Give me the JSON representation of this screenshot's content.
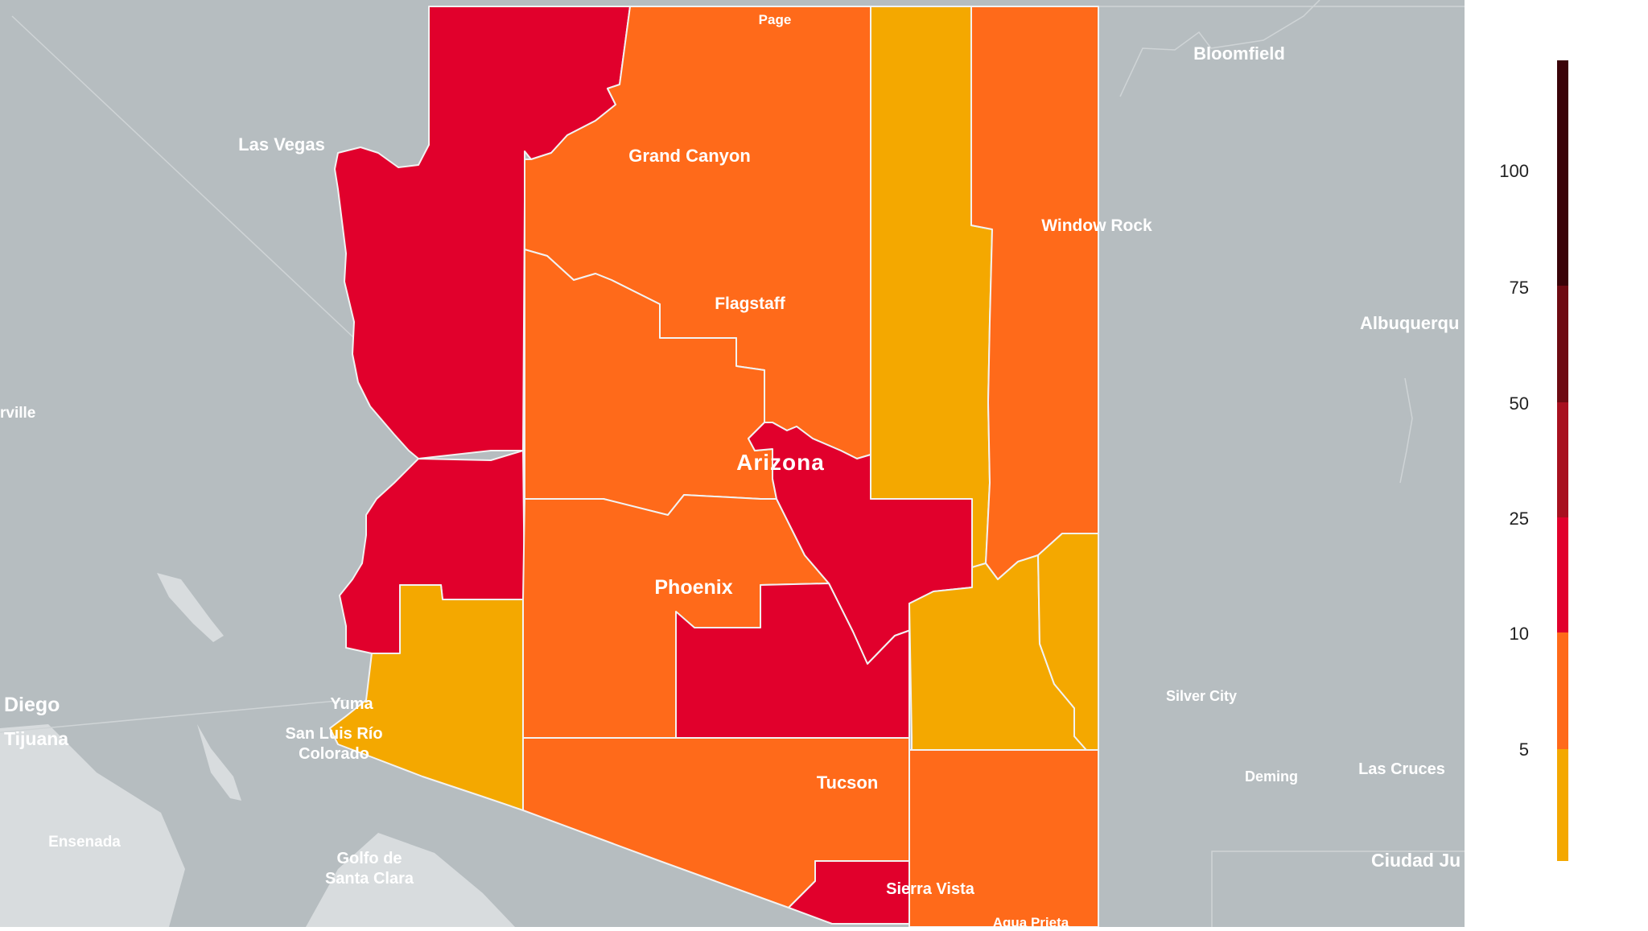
{
  "map": {
    "state_label": "Arizona",
    "background_color": "#b6bdc0",
    "water_color": "#d8dcde",
    "border_color": "#f2f2f2",
    "counties": [
      {
        "id": "mohave-north",
        "level": 4
      },
      {
        "id": "mohave-south",
        "level": 4
      },
      {
        "id": "coconino",
        "level": 3
      },
      {
        "id": "yavapai",
        "level": 3
      },
      {
        "id": "maricopa",
        "level": 3
      },
      {
        "id": "gila",
        "level": 4
      },
      {
        "id": "pinal",
        "level": 4
      },
      {
        "id": "navajo",
        "level": 2
      },
      {
        "id": "apache",
        "level": 3
      },
      {
        "id": "graham",
        "level": 2
      },
      {
        "id": "greenlee",
        "level": 2
      },
      {
        "id": "yuma",
        "level": 2
      },
      {
        "id": "pima",
        "level": 3
      },
      {
        "id": "cochise",
        "level": 3
      },
      {
        "id": "santa-cruz",
        "level": 4
      }
    ],
    "city_labels": [
      {
        "name": "Page",
        "color": "#ffffff",
        "size": "small"
      },
      {
        "name": "Bloomfield",
        "color": "#ffffff",
        "size": "medium"
      },
      {
        "name": "Las Vegas",
        "color": "#ffffff",
        "size": "medium"
      },
      {
        "name": "Grand Canyon",
        "color": "#ffffff",
        "size": "medium"
      },
      {
        "name": "Window Rock",
        "color": "#ffffff",
        "size": "medium"
      },
      {
        "name": "Flagstaff",
        "color": "#ffffff",
        "size": "medium"
      },
      {
        "name": "Albuquerqu",
        "color": "#ffffff",
        "size": "medium"
      },
      {
        "name": "rville",
        "color": "#ffffff",
        "size": "small"
      },
      {
        "name": "Phoenix",
        "color": "#ffffff",
        "size": "large"
      },
      {
        "name": "Diego",
        "color": "#ffffff",
        "size": "large"
      },
      {
        "name": "Yuma",
        "color": "#ffffff",
        "size": "medium"
      },
      {
        "name": "Silver City",
        "color": "#ffffff",
        "size": "small"
      },
      {
        "name": "San Luis Río",
        "color": "#ffffff",
        "size": "medium"
      },
      {
        "name": "Colorado",
        "color": "#ffffff",
        "size": "medium"
      },
      {
        "name": "Tijuana",
        "color": "#ffffff",
        "size": "large"
      },
      {
        "name": "Las Cruces",
        "color": "#ffffff",
        "size": "medium"
      },
      {
        "name": "Deming",
        "color": "#ffffff",
        "size": "small"
      },
      {
        "name": "Tucson",
        "color": "#ffffff",
        "size": "medium"
      },
      {
        "name": "Ensenada",
        "color": "#ffffff",
        "size": "medium"
      },
      {
        "name": "Golfo de",
        "color": "#ffffff",
        "size": "medium"
      },
      {
        "name": "Santa Clara",
        "color": "#ffffff",
        "size": "medium"
      },
      {
        "name": "Ciudad Ju",
        "color": "#ffffff",
        "size": "large"
      },
      {
        "name": "Sierra Vista",
        "color": "#ffffff",
        "size": "medium"
      },
      {
        "name": "Agua Prieta",
        "color": "#ffffff",
        "size": "small"
      }
    ]
  },
  "legend": {
    "ticks": [
      "100",
      "75",
      "50",
      "25",
      "10",
      "5"
    ],
    "bands": [
      {
        "color": "#3a0308"
      },
      {
        "color": "#6e0a12"
      },
      {
        "color": "#a8101f"
      },
      {
        "color": "#e1002c"
      },
      {
        "color": "#ff6a1a"
      },
      {
        "color": "#f4a800"
      }
    ]
  },
  "level_colors": {
    "2": "#f4a800",
    "3": "#ff6a1a",
    "4": "#e1002c"
  }
}
